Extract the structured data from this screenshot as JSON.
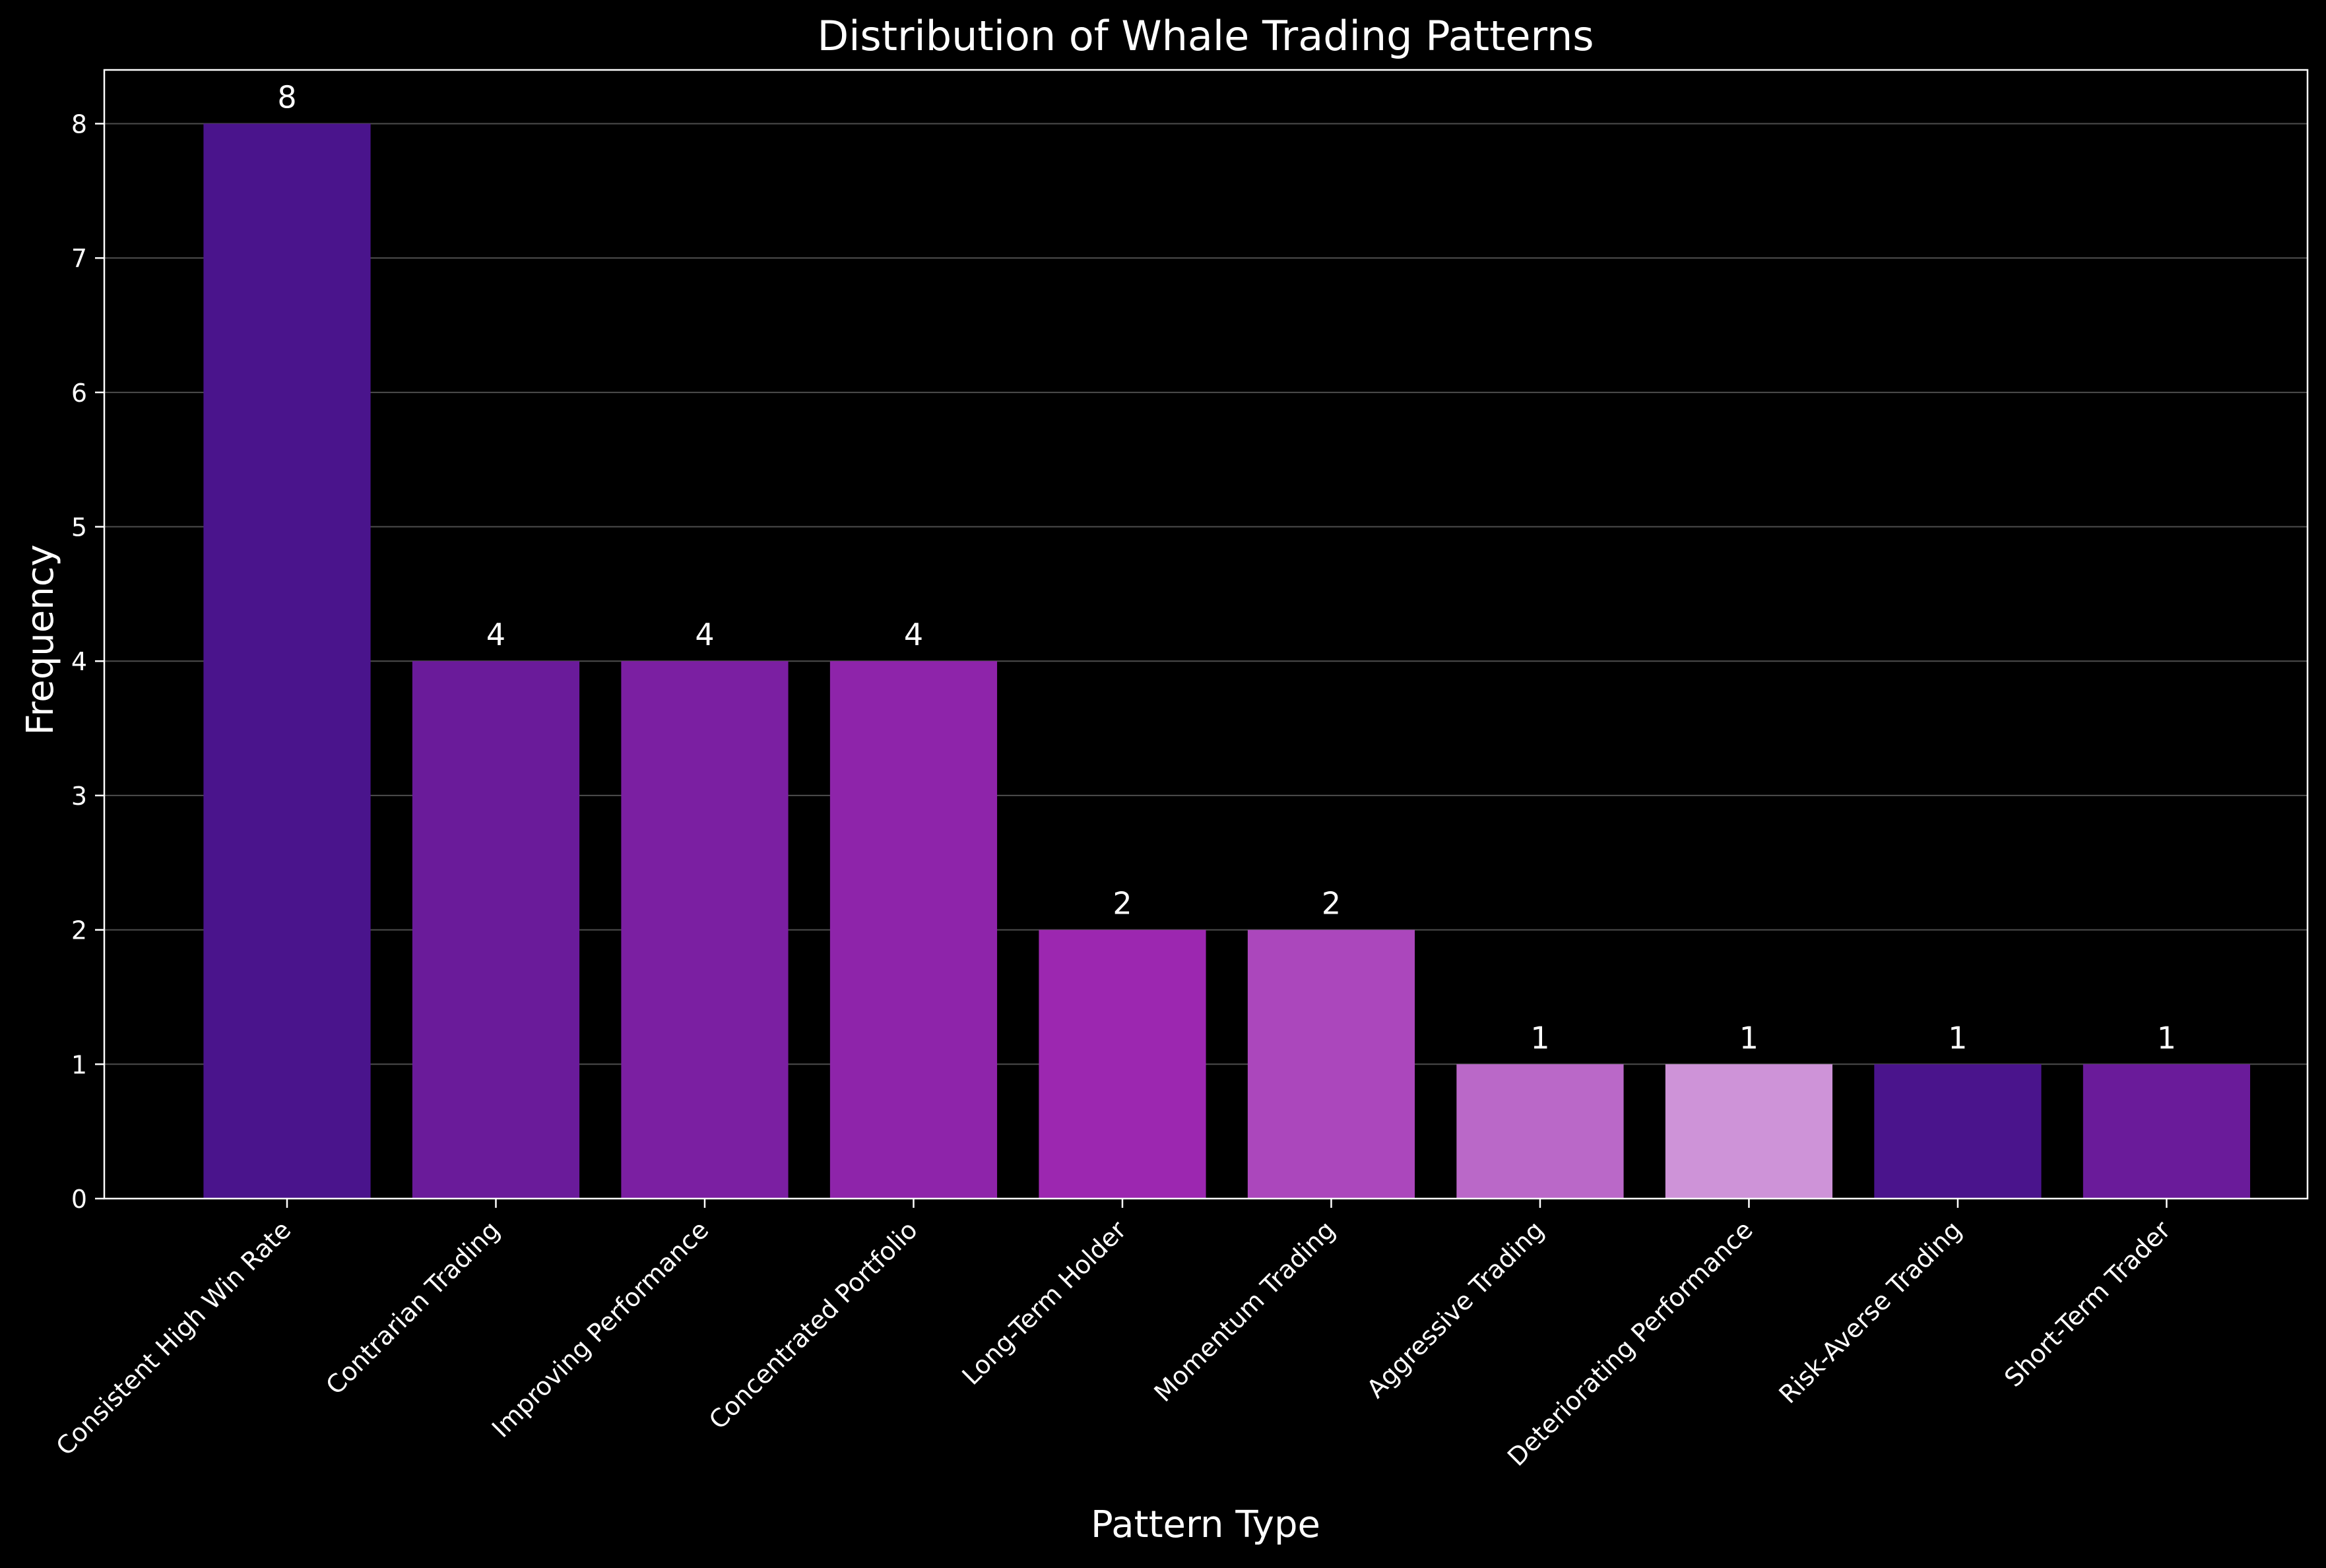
{
  "chart_data": {
    "type": "bar",
    "title": "Distribution of Whale Trading Patterns",
    "xlabel": "Pattern Type",
    "ylabel": "Frequency",
    "categories": [
      "Consistent High Win Rate",
      "Contrarian Trading",
      "Improving Performance",
      "Concentrated Portfolio",
      "Long-Term Holder",
      "Momentum Trading",
      "Aggressive Trading",
      "Deteriorating Performance",
      "Risk-Averse Trading",
      "Short-Term Trader"
    ],
    "values": [
      8,
      4,
      4,
      4,
      2,
      2,
      1,
      1,
      1,
      1
    ],
    "data_labels": [
      "8",
      "4",
      "4",
      "4",
      "2",
      "2",
      "1",
      "1",
      "1",
      "1"
    ],
    "colors": [
      "#4a148c",
      "#6a1b9a",
      "#7b1fa2",
      "#8e24aa",
      "#9c27b0",
      "#ab47bc",
      "#ba68c8",
      "#ce93d8",
      "#4a148c",
      "#6a1b9a"
    ],
    "yticks": [
      "0",
      "1",
      "2",
      "3",
      "4",
      "5",
      "6",
      "7",
      "8"
    ],
    "ylim": [
      0,
      8.4
    ],
    "grid": "horizontal",
    "background": "#000000",
    "axis_color": "#ffffff",
    "text_color": "#ffffff"
  }
}
